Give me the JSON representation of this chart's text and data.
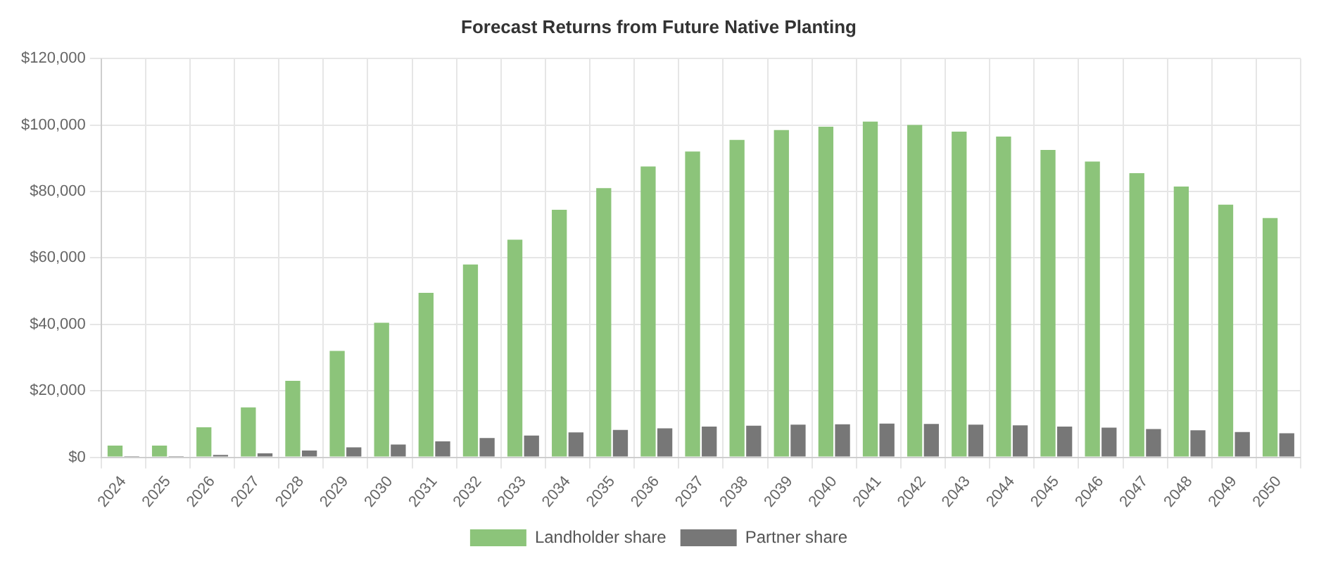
{
  "chart_data": {
    "type": "bar",
    "title": "Forecast Returns from Future Native Planting",
    "categories": [
      "2024",
      "2025",
      "2026",
      "2027",
      "2028",
      "2029",
      "2030",
      "2031",
      "2032",
      "2033",
      "2034",
      "2035",
      "2036",
      "2037",
      "2038",
      "2039",
      "2040",
      "2041",
      "2042",
      "2043",
      "2044",
      "2045",
      "2046",
      "2047",
      "2048",
      "2049",
      "2050"
    ],
    "series": [
      {
        "name": "Landholder share",
        "color": "#8cc47a",
        "values": [
          3500,
          3500,
          9000,
          15000,
          23000,
          32000,
          40500,
          49500,
          58000,
          65500,
          74500,
          81000,
          87500,
          92000,
          95500,
          98500,
          99500,
          101000,
          100000,
          98000,
          96500,
          92500,
          89000,
          85500,
          81500,
          76000,
          72000
        ]
      },
      {
        "name": "Partner share",
        "color": "#777777",
        "values": [
          300,
          300,
          700,
          1200,
          2000,
          3000,
          3800,
          4800,
          5800,
          6500,
          7500,
          8200,
          8700,
          9200,
          9500,
          9800,
          9900,
          10100,
          10000,
          9800,
          9600,
          9200,
          8900,
          8500,
          8100,
          7600,
          7200
        ]
      }
    ],
    "ylim": [
      0,
      120000
    ],
    "yticks": [
      {
        "value": 0,
        "label": "$0"
      },
      {
        "value": 20000,
        "label": "$20,000"
      },
      {
        "value": 40000,
        "label": "$40,000"
      },
      {
        "value": 60000,
        "label": "$60,000"
      },
      {
        "value": 80000,
        "label": "$80,000"
      },
      {
        "value": 100000,
        "label": "$100,000"
      },
      {
        "value": 120000,
        "label": "$120,000"
      }
    ],
    "grid": true,
    "legend": "bottom"
  }
}
